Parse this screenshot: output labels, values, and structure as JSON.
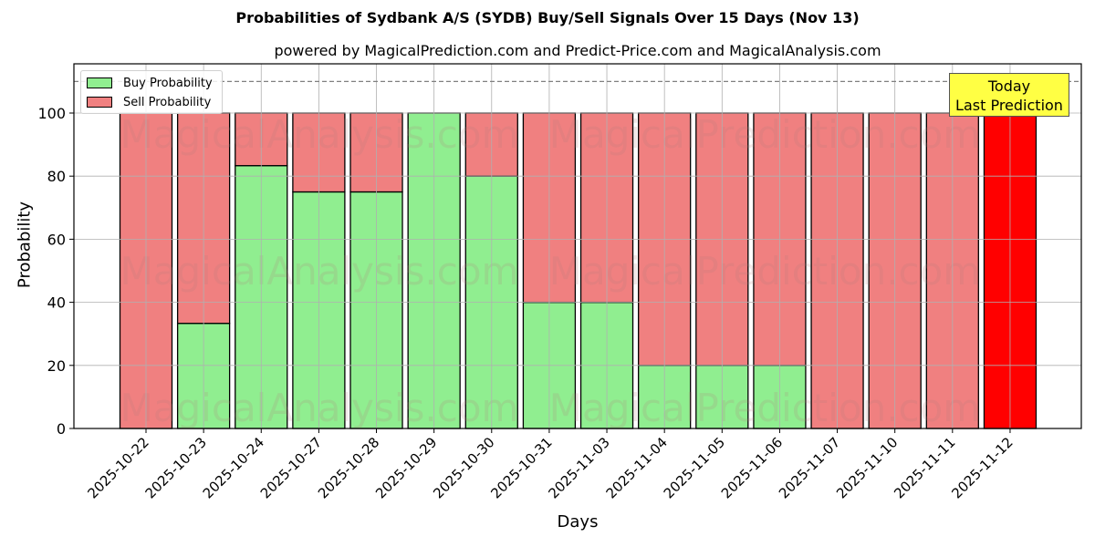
{
  "chart_data": {
    "type": "bar",
    "stacked": true,
    "title": "Probabilities of Sydbank A/S (SYDB) Buy/Sell Signals Over 15 Days (Nov 13)",
    "subtitle": "powered by MagicalPrediction.com and Predict-Price.com and MagicalAnalysis.com",
    "xlabel": "Days",
    "ylabel": "Probability",
    "ylim": [
      0,
      115
    ],
    "yticks": [
      0,
      20,
      40,
      60,
      80,
      100
    ],
    "grid": true,
    "legend_position": "upper left",
    "reference_line": {
      "y": 110,
      "style": "dashed",
      "color": "#808080"
    },
    "categories": [
      "2025-10-22",
      "2025-10-23",
      "2025-10-24",
      "2025-10-27",
      "2025-10-28",
      "2025-10-29",
      "2025-10-30",
      "2025-10-31",
      "2025-11-03",
      "2025-11-04",
      "2025-11-05",
      "2025-11-06",
      "2025-11-07",
      "2025-11-10",
      "2025-11-11",
      "2025-11-12"
    ],
    "series": [
      {
        "name": "Buy Probability",
        "color": "#90ee90",
        "values": [
          0,
          33.33,
          83.33,
          75,
          75,
          100,
          80,
          40,
          40,
          20,
          20,
          20,
          0,
          0,
          0,
          0
        ]
      },
      {
        "name": "Sell Probability",
        "color": "#f08080",
        "values": [
          100,
          66.67,
          16.67,
          25,
          25,
          0,
          20,
          60,
          60,
          80,
          80,
          80,
          100,
          100,
          100,
          100
        ]
      }
    ],
    "highlight": {
      "index": 15,
      "color": "#ff0000",
      "annotation": "Today\nLast Prediction"
    },
    "watermarks": [
      "MagicalAnalysis.com",
      "MagicalPrediction.com"
    ]
  },
  "labels": {
    "title": "Probabilities of Sydbank A/S (SYDB) Buy/Sell Signals Over 15 Days (Nov 13)",
    "subtitle": "powered by MagicalPrediction.com and Predict-Price.com and MagicalAnalysis.com",
    "xlabel": "Days",
    "ylabel": "Probability",
    "legend_buy": "Buy Probability",
    "legend_sell": "Sell Probability",
    "today_line1": "Today",
    "today_line2": "Last Prediction"
  }
}
